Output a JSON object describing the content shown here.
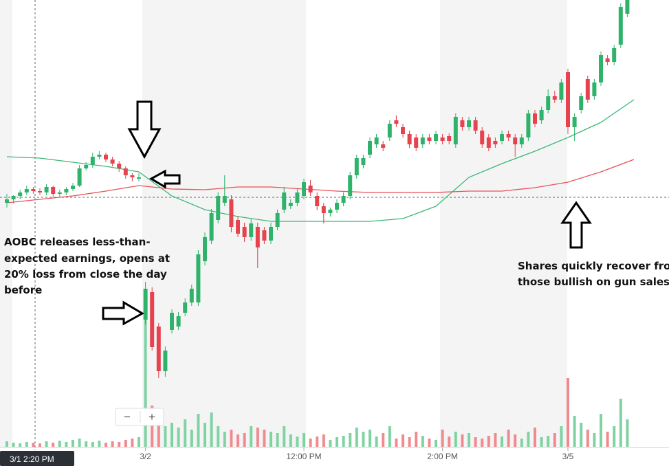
{
  "chart_data": {
    "type": "candlestick",
    "ylim": [
      0,
      600
    ],
    "up_color": "#2fb36b",
    "down_color": "#e6434f",
    "up_volume_color": "#7fd3a3",
    "down_volume_color": "#f08a8f",
    "categories": [
      null,
      null,
      null,
      null,
      null,
      null,
      null,
      null,
      null,
      null,
      null,
      null,
      null,
      null,
      null,
      null,
      null,
      null,
      null,
      null,
      null,
      "3/2",
      null,
      null,
      null,
      null,
      null,
      null,
      null,
      null,
      null,
      null,
      null,
      null,
      null,
      null,
      null,
      null,
      null,
      null,
      null,
      null,
      null,
      null,
      null,
      "12:00 PM",
      null,
      null,
      null,
      null,
      null,
      null,
      null,
      null,
      null,
      null,
      null,
      null,
      null,
      null,
      null,
      null,
      null,
      null,
      null,
      null,
      "2:00 PM",
      null,
      null,
      null,
      null,
      null,
      null,
      null,
      null,
      null,
      null,
      null,
      null,
      null,
      null,
      null,
      null,
      null,
      null,
      "3/5",
      null,
      null,
      null,
      null,
      null,
      null,
      null,
      null,
      null
    ],
    "ohlc": [
      [
        305,
        318,
        298,
        310
      ],
      [
        310,
        316,
        304,
        315
      ],
      [
        315,
        324,
        310,
        320
      ],
      [
        320,
        330,
        316,
        325
      ],
      [
        325,
        328,
        318,
        322
      ],
      [
        322,
        326,
        316,
        320
      ],
      [
        320,
        332,
        316,
        328
      ],
      [
        328,
        330,
        314,
        318
      ],
      [
        318,
        324,
        314,
        320
      ],
      [
        320,
        328,
        316,
        325
      ],
      [
        325,
        334,
        322,
        330
      ],
      [
        330,
        360,
        328,
        355
      ],
      [
        355,
        364,
        352,
        360
      ],
      [
        360,
        378,
        356,
        372
      ],
      [
        372,
        380,
        368,
        375
      ],
      [
        375,
        378,
        364,
        368
      ],
      [
        368,
        372,
        358,
        362
      ],
      [
        362,
        366,
        350,
        355
      ],
      [
        355,
        358,
        340,
        345
      ],
      [
        345,
        348,
        336,
        342
      ],
      [
        340,
        348,
        336,
        342
      ],
      [
        135,
        190,
        128,
        180
      ],
      [
        175,
        182,
        90,
        95
      ],
      [
        125,
        130,
        50,
        60
      ],
      [
        60,
        96,
        52,
        90
      ],
      [
        120,
        150,
        115,
        145
      ],
      [
        125,
        146,
        120,
        140
      ],
      [
        145,
        166,
        140,
        160
      ],
      [
        160,
        186,
        155,
        180
      ],
      [
        160,
        236,
        155,
        230
      ],
      [
        220,
        262,
        214,
        255
      ],
      [
        250,
        296,
        245,
        290
      ],
      [
        280,
        320,
        275,
        315
      ],
      [
        305,
        345,
        300,
        315
      ],
      [
        310,
        316,
        262,
        270
      ],
      [
        280,
        286,
        255,
        260
      ],
      [
        270,
        276,
        248,
        255
      ],
      [
        255,
        282,
        250,
        275
      ],
      [
        270,
        276,
        210,
        240
      ],
      [
        265,
        270,
        245,
        250
      ],
      [
        250,
        276,
        245,
        270
      ],
      [
        270,
        295,
        265,
        290
      ],
      [
        295,
        328,
        290,
        320
      ],
      [
        300,
        310,
        296,
        305
      ],
      [
        305,
        326,
        300,
        320
      ],
      [
        315,
        340,
        310,
        335
      ],
      [
        330,
        338,
        315,
        320
      ],
      [
        315,
        320,
        294,
        300
      ],
      [
        300,
        305,
        275,
        290
      ],
      [
        290,
        298,
        285,
        295
      ],
      [
        295,
        310,
        290,
        305
      ],
      [
        305,
        320,
        300,
        315
      ],
      [
        315,
        350,
        310,
        345
      ],
      [
        345,
        375,
        340,
        370
      ],
      [
        360,
        375,
        355,
        370
      ],
      [
        375,
        400,
        370,
        395
      ],
      [
        390,
        405,
        385,
        400
      ],
      [
        390,
        395,
        380,
        385
      ],
      [
        400,
        425,
        395,
        420
      ],
      [
        425,
        432,
        415,
        420
      ],
      [
        415,
        420,
        400,
        405
      ],
      [
        405,
        410,
        385,
        390
      ],
      [
        400,
        405,
        380,
        385
      ],
      [
        390,
        405,
        385,
        400
      ],
      [
        400,
        405,
        390,
        395
      ],
      [
        395,
        410,
        390,
        405
      ],
      [
        400,
        405,
        390,
        395
      ],
      [
        402,
        406,
        390,
        395
      ],
      [
        390,
        435,
        385,
        430
      ],
      [
        425,
        430,
        410,
        415
      ],
      [
        415,
        430,
        410,
        425
      ],
      [
        425,
        430,
        405,
        410
      ],
      [
        410,
        415,
        385,
        390
      ],
      [
        400,
        405,
        380,
        385
      ],
      [
        395,
        400,
        385,
        390
      ],
      [
        395,
        410,
        390,
        405
      ],
      [
        405,
        410,
        395,
        400
      ],
      [
        400,
        405,
        372,
        390
      ],
      [
        390,
        405,
        385,
        400
      ],
      [
        400,
        440,
        395,
        435
      ],
      [
        435,
        440,
        415,
        420
      ],
      [
        425,
        445,
        420,
        440
      ],
      [
        440,
        470,
        435,
        460
      ],
      [
        460,
        468,
        450,
        455
      ],
      [
        455,
        485,
        450,
        480
      ],
      [
        495,
        500,
        405,
        415
      ],
      [
        415,
        435,
        395,
        430
      ],
      [
        440,
        465,
        435,
        460
      ],
      [
        485,
        490,
        450,
        455
      ],
      [
        460,
        485,
        455,
        480
      ],
      [
        480,
        525,
        475,
        520
      ],
      [
        515,
        520,
        505,
        510
      ],
      [
        510,
        535,
        505,
        530
      ],
      [
        535,
        595,
        530,
        590
      ],
      [
        580,
        600,
        575,
        600
      ]
    ],
    "volume": [
      8,
      6,
      5,
      7,
      6,
      5,
      8,
      6,
      9,
      7,
      10,
      12,
      8,
      7,
      9,
      6,
      8,
      7,
      10,
      12,
      14,
      190,
      60,
      45,
      30,
      35,
      28,
      40,
      25,
      48,
      35,
      50,
      30,
      22,
      25,
      18,
      20,
      30,
      28,
      25,
      22,
      20,
      30,
      18,
      15,
      20,
      12,
      15,
      18,
      10,
      14,
      16,
      20,
      28,
      22,
      25,
      15,
      20,
      30,
      12,
      18,
      14,
      22,
      16,
      12,
      10,
      25,
      15,
      22,
      18,
      20,
      14,
      12,
      16,
      20,
      15,
      25,
      18,
      12,
      22,
      28,
      14,
      16,
      20,
      30,
      100,
      45,
      35,
      25,
      20,
      48,
      22,
      30,
      70,
      40
    ],
    "lines": [
      {
        "color": "#3cb878",
        "x": [
          0,
          5,
          10,
          15,
          20,
          25,
          30,
          35,
          40,
          45,
          50,
          55,
          60,
          65,
          70,
          75,
          80,
          85,
          90,
          95
        ],
        "values": [
          372,
          370,
          364,
          358,
          350,
          315,
          295,
          285,
          278,
          278,
          278,
          278,
          282,
          300,
          342,
          362,
          380,
          400,
          422,
          455
        ]
      },
      {
        "color": "#e8525a",
        "x": [
          0,
          5,
          10,
          15,
          20,
          25,
          30,
          35,
          40,
          45,
          50,
          55,
          60,
          65,
          70,
          75,
          80,
          85,
          90,
          95
        ],
        "values": [
          305,
          310,
          315,
          322,
          330,
          325,
          324,
          328,
          328,
          325,
          322,
          320,
          320,
          320,
          322,
          322,
          327,
          335,
          350,
          368
        ]
      }
    ],
    "crosshair_label": "3/1 2:20 PM",
    "annotations": [
      [
        "AOBC releases less-than-",
        "expected earnings, opens at",
        "20% loss from close the day",
        "before"
      ],
      [
        "Shares quickly recover from",
        "those bullish on gun sales"
      ]
    ],
    "zoom": [
      "−",
      "+"
    ]
  }
}
